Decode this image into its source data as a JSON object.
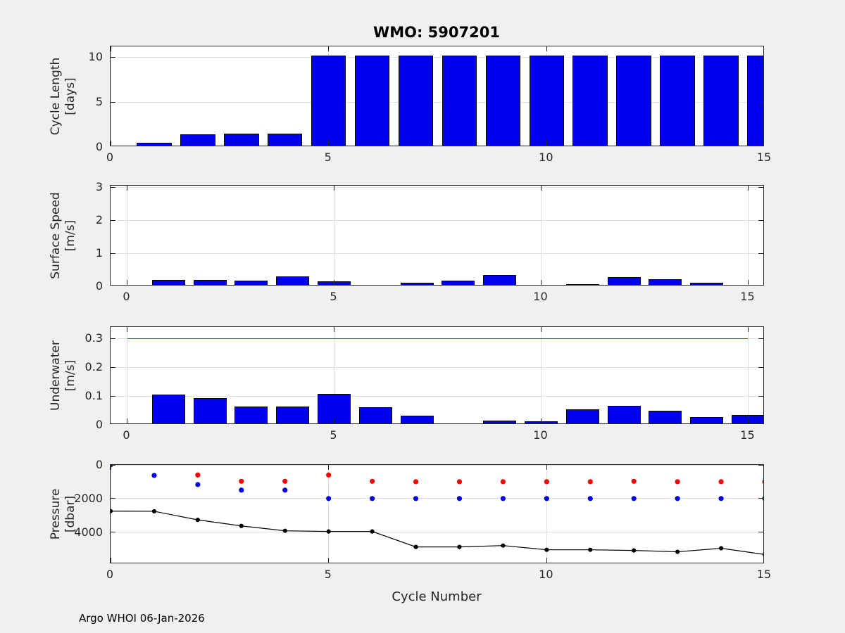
{
  "title": "WMO: 5907201",
  "xlabel": "Cycle Number",
  "footer": "Argo WHOI 06-Jan-2026",
  "colors": {
    "figure_background": "#f0f0f0",
    "axes_background": "#ffffff",
    "bar_fill": "#0000ee",
    "bar_edge": "#000000",
    "threshold_red": "#ff0000",
    "line_black": "#000000",
    "dot_red": "#ff0000",
    "dot_blue": "#0000ee",
    "grid": "#e0e0e0",
    "text": "#262626"
  },
  "chart_data": [
    {
      "id": "cycle-length",
      "type": "bar",
      "ylabel": [
        "Cycle Length",
        "[days]"
      ],
      "x": [
        1,
        2,
        3,
        4,
        5,
        6,
        7,
        8,
        9,
        10,
        11,
        12,
        13,
        14,
        15
      ],
      "values": [
        0.45,
        1.4,
        1.45,
        1.45,
        10.2,
        10.2,
        10.2,
        10.2,
        10.2,
        10.2,
        10.2,
        10.2,
        10.2,
        10.2,
        10.2
      ],
      "bar_width": 0.8,
      "xlim": [
        0,
        15
      ],
      "ylim": [
        0,
        11.2
      ],
      "xticks": [
        0,
        5,
        10,
        15
      ],
      "xtick_labels": [
        "0",
        "5",
        "10",
        "15"
      ],
      "yticks": [
        0,
        5,
        10
      ],
      "ytick_labels": [
        "0",
        "5",
        "10"
      ],
      "grid": true
    },
    {
      "id": "surface-speed",
      "type": "bar",
      "ylabel": [
        "Surface Speed",
        "[m/s]"
      ],
      "x": [
        1,
        2,
        3,
        4,
        5,
        6,
        7,
        8,
        9,
        10,
        11,
        12,
        13,
        14,
        15
      ],
      "values": [
        0.2,
        0.2,
        0.16,
        0.3,
        0.15,
        0.04,
        0.11,
        0.18,
        0.34,
        0.03,
        0.07,
        0.27,
        0.21,
        0.11,
        0
      ],
      "bar_width": 0.8,
      "xlim": [
        -0.4,
        15.4
      ],
      "ylim": [
        0,
        3.05
      ],
      "xticks": [
        0,
        5,
        10,
        15
      ],
      "xtick_labels": [
        "0",
        "5",
        "10",
        "15"
      ],
      "yticks": [
        0,
        1,
        2,
        3
      ],
      "ytick_labels": [
        "0",
        "1",
        "2",
        "3"
      ],
      "grid": true
    },
    {
      "id": "underwater-speed",
      "type": "bar",
      "ylabel": [
        "Underwater",
        "[m/s]"
      ],
      "x": [
        1,
        2,
        3,
        4,
        5,
        6,
        7,
        8,
        9,
        10,
        11,
        12,
        13,
        14,
        15
      ],
      "values": [
        0.105,
        0.092,
        0.063,
        0.064,
        0.107,
        0.06,
        0.032,
        0.004,
        0.015,
        0.013,
        0.055,
        0.065,
        0.05,
        0.028,
        0.034
      ],
      "bar_width": 0.8,
      "xlim": [
        -0.4,
        15.4
      ],
      "ylim": [
        0,
        0.34
      ],
      "xticks": [
        0,
        5,
        10,
        15
      ],
      "xtick_labels": [
        "0",
        "5",
        "10",
        "15"
      ],
      "yticks": [
        0,
        0.1,
        0.2,
        0.3
      ],
      "ytick_labels": [
        "0",
        "0.1",
        "0.2",
        "0.3"
      ],
      "grid": true,
      "threshold": {
        "y": 0.3,
        "x_start": 0,
        "x_end": 15,
        "color": "#ff0000"
      }
    },
    {
      "id": "pressure",
      "type": "scatter-line",
      "ylabel": [
        "Pressure",
        "[dbar]"
      ],
      "y_reversed": true,
      "xlim": [
        0,
        15
      ],
      "ylim": [
        0,
        5900
      ],
      "xticks": [
        0,
        5,
        10,
        15
      ],
      "xtick_labels": [
        "0",
        "5",
        "10",
        "15"
      ],
      "yticks": [
        0,
        2000,
        4000
      ],
      "ytick_labels": [
        "0",
        "2000",
        "4000"
      ],
      "grid": true,
      "series": [
        {
          "name": "max-pressure-black-line",
          "style": "line+dots",
          "color": "#000000",
          "x": [
            0,
            1,
            2,
            3,
            4,
            5,
            6,
            7,
            8,
            9,
            10,
            11,
            12,
            13,
            14,
            15
          ],
          "values": [
            2750,
            2760,
            3270,
            3630,
            3920,
            3960,
            3960,
            4880,
            4880,
            4800,
            5050,
            5050,
            5090,
            5170,
            4960,
            5330
          ]
        },
        {
          "name": "red-dots",
          "style": "dots",
          "color": "#ff0000",
          "x": [
            2,
            3,
            4,
            5,
            6,
            7,
            8,
            9,
            10,
            11,
            12,
            13,
            14,
            15
          ],
          "values": [
            600,
            975,
            975,
            600,
            975,
            1000,
            1000,
            1000,
            1000,
            1000,
            975,
            1000,
            1000,
            1000
          ]
        },
        {
          "name": "blue-dots",
          "style": "dots",
          "color": "#0000ee",
          "x": [
            0,
            1,
            2,
            3,
            4,
            5,
            6,
            7,
            8,
            9,
            10,
            11,
            12,
            13,
            14,
            15
          ],
          "values": [
            0,
            625,
            1170,
            1500,
            1500,
            2000,
            2000,
            2000,
            2000,
            2000,
            2000,
            2000,
            2000,
            2000,
            2000,
            2000
          ]
        }
      ]
    }
  ]
}
